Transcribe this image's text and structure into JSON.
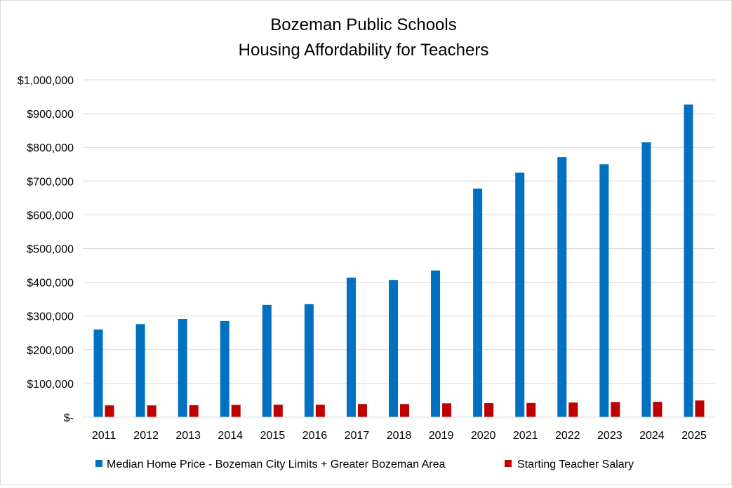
{
  "chart_data": {
    "type": "bar",
    "title": "Bozeman Public Schools",
    "subtitle": "Housing Affordability for Teachers",
    "xlabel": "",
    "ylabel": "",
    "ylim": [
      0,
      1000000
    ],
    "yticks": [
      0,
      100000,
      200000,
      300000,
      400000,
      500000,
      600000,
      700000,
      800000,
      900000,
      1000000
    ],
    "ytick_labels": [
      "$-",
      "$100,000",
      "$200,000",
      "$300,000",
      "$400,000",
      "$500,000",
      "$600,000",
      "$700,000",
      "$800,000",
      "$900,000",
      "$1,000,000"
    ],
    "grid": true,
    "legend_position": "bottom",
    "categories": [
      "2011",
      "2012",
      "2013",
      "2014",
      "2015",
      "2016",
      "2017",
      "2018",
      "2019",
      "2020",
      "2021",
      "2022",
      "2023",
      "2024",
      "2025"
    ],
    "series": [
      {
        "name": "Median Home Price - Bozeman City Limits + Greater Bozeman Area",
        "color": "#0070c0",
        "values": [
          260000,
          276000,
          291000,
          285000,
          333000,
          335000,
          414000,
          407000,
          435000,
          678000,
          725000,
          771000,
          750000,
          815000,
          927000
        ]
      },
      {
        "name": "Starting Teacher Salary",
        "color": "#c00000",
        "values": [
          35000,
          35000,
          35500,
          36500,
          37000,
          37000,
          39000,
          39000,
          41000,
          41500,
          42000,
          43500,
          45000,
          45500,
          49500
        ]
      }
    ]
  }
}
